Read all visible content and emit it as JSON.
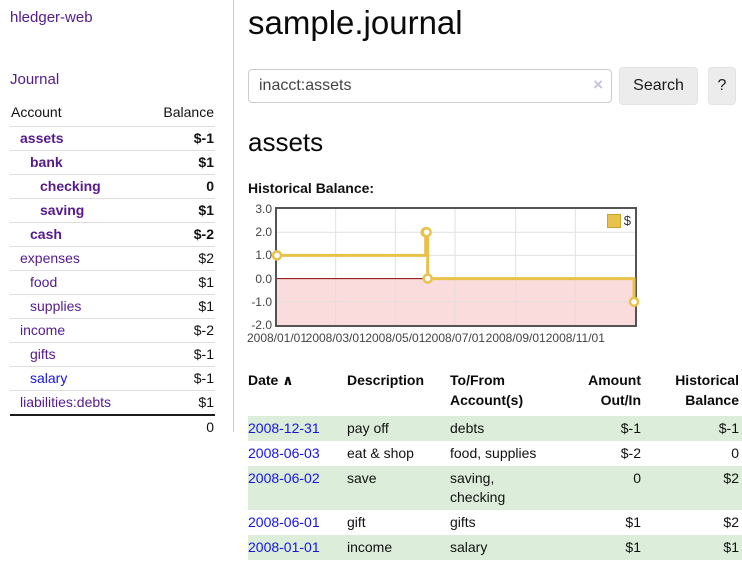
{
  "app": {
    "title": "hledger-web"
  },
  "sidebar": {
    "journal_link": "Journal",
    "accounts_table": {
      "headers": {
        "account": "Account",
        "balance": "Balance"
      },
      "rows": [
        {
          "name": "assets",
          "indent": 1,
          "bold": true,
          "link_color": "purple",
          "balance": "$-1",
          "balance_color": "negative"
        },
        {
          "name": "bank",
          "indent": 2,
          "bold": true,
          "link_color": "purple",
          "balance": "$1",
          "balance_color": "normal"
        },
        {
          "name": "checking",
          "indent": 3,
          "bold": true,
          "link_color": "purple",
          "balance": "0",
          "balance_color": "normal"
        },
        {
          "name": "saving",
          "indent": 3,
          "bold": true,
          "link_color": "purple",
          "balance": "$1",
          "balance_color": "normal"
        },
        {
          "name": "cash",
          "indent": 2,
          "bold": true,
          "link_color": "purple",
          "balance": "$-2",
          "balance_color": "negative"
        },
        {
          "name": "expenses",
          "indent": 1,
          "bold": false,
          "link_color": "purple",
          "balance": "$2",
          "balance_color": "normal"
        },
        {
          "name": "food",
          "indent": 2,
          "bold": false,
          "link_color": "purple",
          "balance": "$1",
          "balance_color": "normal"
        },
        {
          "name": "supplies",
          "indent": 2,
          "bold": false,
          "link_color": "purple",
          "balance": "$1",
          "balance_color": "normal"
        },
        {
          "name": "income",
          "indent": 1,
          "bold": false,
          "link_color": "purple",
          "balance": "$-2",
          "balance_color": "negative-faded"
        },
        {
          "name": "gifts",
          "indent": 2,
          "bold": false,
          "link_color": "purple",
          "balance": "$-1",
          "balance_color": "negative-faded"
        },
        {
          "name": "salary",
          "indent": 2,
          "bold": false,
          "link_color": "blue",
          "balance": "$-1",
          "balance_color": "negative-faded"
        },
        {
          "name": "liabilities:debts",
          "indent": 1,
          "bold": false,
          "link_color": "purple",
          "balance": "$1",
          "balance_color": "normal"
        }
      ],
      "total": "0"
    }
  },
  "main": {
    "title": "sample.journal",
    "search": {
      "value": "inacct:assets",
      "clear_icon": "×",
      "button": "Search",
      "help_button": "?"
    },
    "account_heading": "assets"
  },
  "chart_data": {
    "type": "line",
    "title": "Historical Balance:",
    "xlabel": "",
    "ylabel": "",
    "line_style": "step",
    "xlim": [
      0,
      1
    ],
    "ylim": [
      -2,
      3
    ],
    "grid": true,
    "x_ticks": [
      {
        "label": "2008/01/01",
        "v": 0.0
      },
      {
        "label": "2008/03/01",
        "v": 0.1639
      },
      {
        "label": "2008/05/01",
        "v": 0.3306
      },
      {
        "label": "2008/07/01",
        "v": 0.4973
      },
      {
        "label": "2008/09/01",
        "v": 0.6667
      },
      {
        "label": "2008/11/01",
        "v": 0.8333
      }
    ],
    "y_ticks": [
      {
        "label": "3.0",
        "v": 3
      },
      {
        "label": "2.0",
        "v": 2
      },
      {
        "label": "1.0",
        "v": 1
      },
      {
        "label": "0.0",
        "v": 0
      },
      {
        "label": "-1.0",
        "v": -1
      },
      {
        "label": "-2.0",
        "v": -2
      }
    ],
    "series": [
      {
        "name": "$",
        "color": "#e8c24a",
        "marker_fill": "#ffffff",
        "points": [
          {
            "date": "2008/01/01",
            "x": 0.0,
            "y": 1
          },
          {
            "date": "2008/06/01",
            "x": 0.4153,
            "y": 2
          },
          {
            "date": "2008/06/02",
            "x": 0.418,
            "y": 2
          },
          {
            "date": "2008/06/03",
            "x": 0.4208,
            "y": 0
          },
          {
            "date": "2008/12/31",
            "x": 0.9973,
            "y": -1
          }
        ]
      }
    ],
    "negative_fill": "#fbdcdc",
    "zero_line_color": "#8b0000",
    "grid_color": "#dedede",
    "border_color": "#545454",
    "legend": {
      "position": "top-right",
      "label": "$",
      "swatch_color": "#e8c24a",
      "swatch_border": "#c9a32b"
    }
  },
  "register_table": {
    "headers": {
      "date": "Date",
      "sort_icon": "∧",
      "description": "Description",
      "accounts": "To/From Account(s)",
      "amount": "Amount Out/In",
      "balance": "Historical Balance"
    },
    "rows": [
      {
        "date": "2008-12-31",
        "description": "pay off",
        "accounts": "debts",
        "amount": "$-1",
        "amount_negative": true,
        "balance": "$-1",
        "balance_negative": true
      },
      {
        "date": "2008-06-03",
        "description": "eat & shop",
        "accounts": "food, supplies",
        "amount": "$-2",
        "amount_negative": true,
        "balance": "0",
        "balance_negative": false
      },
      {
        "date": "2008-06-02",
        "description": "save",
        "accounts": "saving, checking",
        "amount": "0",
        "amount_negative": false,
        "balance": "$2",
        "balance_negative": false
      },
      {
        "date": "2008-06-01",
        "description": "gift",
        "accounts": "gifts",
        "amount": "$1",
        "amount_negative": false,
        "balance": "$2",
        "balance_negative": false
      },
      {
        "date": "2008-01-01",
        "description": "income",
        "accounts": "salary",
        "amount": "$1",
        "amount_negative": false,
        "balance": "$1",
        "balance_negative": false
      }
    ]
  }
}
